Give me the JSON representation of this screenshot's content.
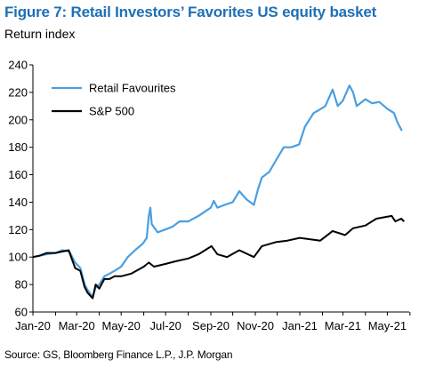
{
  "title": "Figure 7: Retail Investors’ Favorites US equity basket",
  "subtitle": "Return index",
  "source": "Source: GS, Bloomberg Finance L.P., J.P. Morgan",
  "chart_data": {
    "type": "line",
    "ylim": [
      60,
      240
    ],
    "yticks": [
      "60",
      "80",
      "100",
      "120",
      "140",
      "160",
      "180",
      "200",
      "220",
      "240"
    ],
    "xticks": [
      "Jan-20",
      "Mar-20",
      "May-20",
      "Jul-20",
      "Sep-20",
      "Nov-20",
      "Jan-21",
      "Mar-21",
      "May-21"
    ],
    "xlim": [
      "2020-01-01",
      "2021-05-31"
    ],
    "grid": false,
    "legend": "top-left",
    "series": [
      {
        "name": "Retail Favourites",
        "color": "#4a9fe0",
        "points": [
          [
            "2020-01-01",
            100
          ],
          [
            "2020-01-10",
            101
          ],
          [
            "2020-01-20",
            102
          ],
          [
            "2020-02-01",
            103
          ],
          [
            "2020-02-10",
            105
          ],
          [
            "2020-02-20",
            104
          ],
          [
            "2020-02-28",
            96
          ],
          [
            "2020-03-06",
            92
          ],
          [
            "2020-03-12",
            80
          ],
          [
            "2020-03-16",
            76
          ],
          [
            "2020-03-20",
            73
          ],
          [
            "2020-03-23",
            71
          ],
          [
            "2020-03-27",
            78
          ],
          [
            "2020-04-01",
            80
          ],
          [
            "2020-04-08",
            86
          ],
          [
            "2020-04-15",
            88
          ],
          [
            "2020-04-22",
            90
          ],
          [
            "2020-05-01",
            93
          ],
          [
            "2020-05-10",
            100
          ],
          [
            "2020-05-20",
            105
          ],
          [
            "2020-05-31",
            110
          ],
          [
            "2020-06-05",
            114
          ],
          [
            "2020-06-08",
            130
          ],
          [
            "2020-06-10",
            136
          ],
          [
            "2020-06-12",
            124
          ],
          [
            "2020-06-20",
            118
          ],
          [
            "2020-06-30",
            120
          ],
          [
            "2020-07-10",
            122
          ],
          [
            "2020-07-20",
            126
          ],
          [
            "2020-08-01",
            126
          ],
          [
            "2020-08-15",
            130
          ],
          [
            "2020-09-01",
            136
          ],
          [
            "2020-09-05",
            141
          ],
          [
            "2020-09-10",
            136
          ],
          [
            "2020-09-20",
            138
          ],
          [
            "2020-10-01",
            140
          ],
          [
            "2020-10-10",
            148
          ],
          [
            "2020-10-20",
            142
          ],
          [
            "2020-10-30",
            138
          ],
          [
            "2020-11-05",
            150
          ],
          [
            "2020-11-10",
            158
          ],
          [
            "2020-11-20",
            162
          ],
          [
            "2020-12-01",
            172
          ],
          [
            "2020-12-10",
            180
          ],
          [
            "2020-12-20",
            180
          ],
          [
            "2020-12-31",
            182
          ],
          [
            "2021-01-08",
            195
          ],
          [
            "2021-01-20",
            205
          ],
          [
            "2021-01-27",
            207
          ],
          [
            "2021-02-05",
            210
          ],
          [
            "2021-02-15",
            222
          ],
          [
            "2021-02-22",
            210
          ],
          [
            "2021-03-01",
            214
          ],
          [
            "2021-03-10",
            225
          ],
          [
            "2021-03-15",
            220
          ],
          [
            "2021-03-20",
            210
          ],
          [
            "2021-04-01",
            215
          ],
          [
            "2021-04-10",
            212
          ],
          [
            "2021-04-20",
            213
          ],
          [
            "2021-05-01",
            208
          ],
          [
            "2021-05-10",
            205
          ],
          [
            "2021-05-15",
            198
          ],
          [
            "2021-05-21",
            192
          ]
        ]
      },
      {
        "name": "S&P 500",
        "color": "#000000",
        "points": [
          [
            "2020-01-01",
            100
          ],
          [
            "2020-01-10",
            101
          ],
          [
            "2020-01-20",
            103
          ],
          [
            "2020-02-01",
            103
          ],
          [
            "2020-02-10",
            104
          ],
          [
            "2020-02-19",
            105
          ],
          [
            "2020-02-28",
            92
          ],
          [
            "2020-03-06",
            90
          ],
          [
            "2020-03-12",
            78
          ],
          [
            "2020-03-16",
            74
          ],
          [
            "2020-03-23",
            70
          ],
          [
            "2020-03-27",
            80
          ],
          [
            "2020-04-01",
            77
          ],
          [
            "2020-04-08",
            84
          ],
          [
            "2020-04-15",
            84
          ],
          [
            "2020-04-22",
            86
          ],
          [
            "2020-05-01",
            86
          ],
          [
            "2020-05-15",
            88
          ],
          [
            "2020-06-01",
            93
          ],
          [
            "2020-06-08",
            96
          ],
          [
            "2020-06-15",
            93
          ],
          [
            "2020-07-01",
            95
          ],
          [
            "2020-07-15",
            97
          ],
          [
            "2020-08-01",
            99
          ],
          [
            "2020-08-15",
            102
          ],
          [
            "2020-09-02",
            108
          ],
          [
            "2020-09-10",
            102
          ],
          [
            "2020-09-23",
            100
          ],
          [
            "2020-10-10",
            105
          ],
          [
            "2020-10-30",
            100
          ],
          [
            "2020-11-10",
            108
          ],
          [
            "2020-11-30",
            111
          ],
          [
            "2020-12-15",
            112
          ],
          [
            "2021-01-01",
            114
          ],
          [
            "2021-01-29",
            112
          ],
          [
            "2021-02-15",
            119
          ],
          [
            "2021-03-04",
            116
          ],
          [
            "2021-03-15",
            121
          ],
          [
            "2021-04-01",
            123
          ],
          [
            "2021-04-16",
            128
          ],
          [
            "2021-05-07",
            130
          ],
          [
            "2021-05-12",
            126
          ],
          [
            "2021-05-20",
            128
          ],
          [
            "2021-05-24",
            126
          ]
        ]
      }
    ]
  }
}
